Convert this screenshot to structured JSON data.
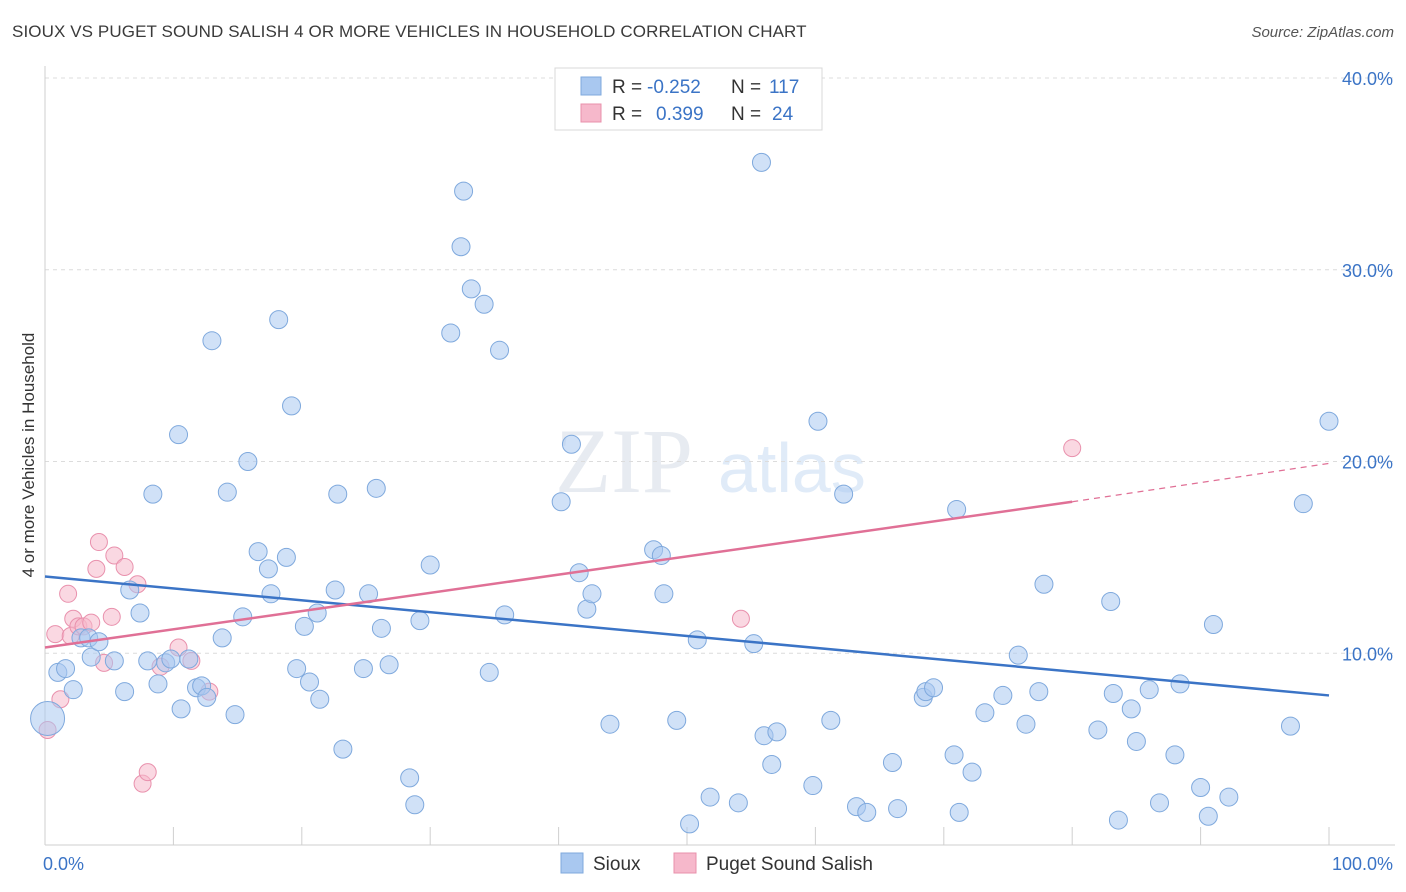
{
  "header": {
    "title": "SIOUX VS PUGET SOUND SALISH 4 OR MORE VEHICLES IN HOUSEHOLD CORRELATION CHART",
    "source": "Source: ZipAtlas.com"
  },
  "watermark": {
    "zip": "ZIP",
    "atlas": "atlas"
  },
  "legend_top": [
    {
      "r_label": "R =",
      "r_value": "-0.252",
      "n_label": "N =",
      "n_value": "117",
      "color": "#a9c8f0"
    },
    {
      "r_label": "R =",
      "r_value": "0.399",
      "n_label": "N =",
      "n_value": "24",
      "color": "#f6b8cb"
    }
  ],
  "legend_bottom": [
    {
      "label": "Sioux",
      "color": "#a9c8f0"
    },
    {
      "label": "Puget Sound Salish",
      "color": "#f6b8cb"
    }
  ],
  "chart_data": {
    "type": "scatter",
    "title": "SIOUX VS PUGET SOUND SALISH 4 OR MORE VEHICLES IN HOUSEHOLD CORRELATION CHART",
    "xlabel": "",
    "ylabel": "4 or more Vehicles in Household",
    "xlim": [
      0,
      100
    ],
    "ylim": [
      0,
      40
    ],
    "x_tick_labels": [
      "0.0%",
      "100.0%"
    ],
    "y_ticks": [
      10,
      20,
      30,
      40
    ],
    "y_tick_labels": [
      "10.0%",
      "20.0%",
      "30.0%",
      "40.0%"
    ],
    "grid": true,
    "legend_position": "top-center",
    "colors": {
      "sioux": "#a9c8f0",
      "sioux_line": "#3b74c6",
      "salish": "#f6b8cb",
      "salish_line": "#e07096"
    },
    "series": [
      {
        "name": "Sioux",
        "points": [
          [
            0.2,
            6.6
          ],
          [
            1.0,
            9.0
          ],
          [
            1.6,
            9.2
          ],
          [
            2.2,
            8.1
          ],
          [
            2.8,
            10.8
          ],
          [
            3.4,
            10.8
          ],
          [
            3.6,
            9.8
          ],
          [
            4.2,
            10.6
          ],
          [
            5.4,
            9.6
          ],
          [
            6.2,
            8.0
          ],
          [
            6.6,
            13.3
          ],
          [
            7.4,
            12.1
          ],
          [
            8.0,
            9.6
          ],
          [
            8.4,
            18.3
          ],
          [
            8.8,
            8.4
          ],
          [
            9.4,
            9.5
          ],
          [
            9.8,
            9.7
          ],
          [
            10.4,
            21.4
          ],
          [
            10.6,
            7.1
          ],
          [
            11.2,
            9.7
          ],
          [
            11.8,
            8.2
          ],
          [
            12.2,
            8.3
          ],
          [
            12.6,
            7.7
          ],
          [
            13.0,
            26.3
          ],
          [
            13.8,
            10.8
          ],
          [
            14.2,
            18.4
          ],
          [
            14.8,
            6.8
          ],
          [
            15.4,
            11.9
          ],
          [
            15.8,
            20.0
          ],
          [
            16.6,
            15.3
          ],
          [
            17.4,
            14.4
          ],
          [
            17.6,
            13.1
          ],
          [
            18.2,
            27.4
          ],
          [
            18.8,
            15.0
          ],
          [
            19.2,
            22.9
          ],
          [
            19.6,
            9.2
          ],
          [
            20.2,
            11.4
          ],
          [
            20.6,
            8.5
          ],
          [
            21.2,
            12.1
          ],
          [
            21.4,
            7.6
          ],
          [
            22.6,
            13.3
          ],
          [
            22.8,
            18.3
          ],
          [
            23.2,
            5.0
          ],
          [
            24.8,
            9.2
          ],
          [
            25.2,
            13.1
          ],
          [
            25.8,
            18.6
          ],
          [
            26.2,
            11.3
          ],
          [
            26.8,
            9.4
          ],
          [
            28.4,
            3.5
          ],
          [
            28.8,
            2.1
          ],
          [
            29.2,
            11.7
          ],
          [
            30.0,
            14.6
          ],
          [
            31.6,
            26.7
          ],
          [
            32.4,
            31.2
          ],
          [
            32.6,
            34.1
          ],
          [
            33.2,
            29.0
          ],
          [
            34.2,
            28.2
          ],
          [
            34.6,
            9.0
          ],
          [
            35.4,
            25.8
          ],
          [
            35.8,
            12.0
          ],
          [
            40.2,
            17.9
          ],
          [
            41.0,
            20.9
          ],
          [
            41.6,
            14.2
          ],
          [
            42.2,
            12.3
          ],
          [
            42.6,
            13.1
          ],
          [
            44.0,
            6.3
          ],
          [
            47.4,
            15.4
          ],
          [
            48.0,
            15.1
          ],
          [
            48.2,
            13.1
          ],
          [
            49.2,
            6.5
          ],
          [
            50.2,
            1.1
          ],
          [
            50.8,
            10.7
          ],
          [
            51.8,
            2.5
          ],
          [
            54.0,
            2.2
          ],
          [
            55.2,
            10.5
          ],
          [
            55.8,
            35.6
          ],
          [
            56.0,
            5.7
          ],
          [
            56.6,
            4.2
          ],
          [
            57.0,
            5.9
          ],
          [
            59.8,
            3.1
          ],
          [
            60.2,
            22.1
          ],
          [
            61.2,
            6.5
          ],
          [
            62.2,
            18.3
          ],
          [
            63.2,
            2.0
          ],
          [
            64.0,
            1.7
          ],
          [
            66.0,
            4.3
          ],
          [
            66.4,
            1.9
          ],
          [
            68.4,
            7.7
          ],
          [
            68.6,
            8.0
          ],
          [
            69.2,
            8.2
          ],
          [
            70.8,
            4.7
          ],
          [
            71.0,
            17.5
          ],
          [
            71.2,
            1.7
          ],
          [
            72.2,
            3.8
          ],
          [
            73.2,
            6.9
          ],
          [
            74.6,
            7.8
          ],
          [
            75.8,
            9.9
          ],
          [
            76.4,
            6.3
          ],
          [
            77.4,
            8.0
          ],
          [
            77.8,
            13.6
          ],
          [
            82.0,
            6.0
          ],
          [
            83.0,
            12.7
          ],
          [
            83.2,
            7.9
          ],
          [
            83.6,
            1.3
          ],
          [
            84.6,
            7.1
          ],
          [
            85.0,
            5.4
          ],
          [
            86.0,
            8.1
          ],
          [
            86.8,
            2.2
          ],
          [
            88.0,
            4.7
          ],
          [
            88.4,
            8.4
          ],
          [
            90.0,
            3.0
          ],
          [
            90.6,
            1.5
          ],
          [
            91.0,
            11.5
          ],
          [
            92.2,
            2.5
          ],
          [
            97.0,
            6.2
          ],
          [
            98.0,
            17.8
          ],
          [
            100.0,
            22.1
          ]
        ]
      },
      {
        "name": "Puget Sound Salish",
        "points": [
          [
            0.2,
            6.0
          ],
          [
            0.8,
            11.0
          ],
          [
            1.2,
            7.6
          ],
          [
            1.8,
            13.1
          ],
          [
            2.0,
            10.9
          ],
          [
            2.2,
            11.8
          ],
          [
            2.6,
            11.4
          ],
          [
            3.0,
            11.4
          ],
          [
            3.6,
            11.6
          ],
          [
            4.0,
            14.4
          ],
          [
            4.2,
            15.8
          ],
          [
            4.6,
            9.5
          ],
          [
            5.2,
            11.9
          ],
          [
            5.4,
            15.1
          ],
          [
            6.2,
            14.5
          ],
          [
            7.2,
            13.6
          ],
          [
            7.6,
            3.2
          ],
          [
            8.0,
            3.8
          ],
          [
            9.0,
            9.3
          ],
          [
            10.4,
            10.3
          ],
          [
            11.4,
            9.6
          ],
          [
            12.8,
            8.0
          ],
          [
            54.2,
            11.8
          ],
          [
            80.0,
            20.7
          ]
        ]
      }
    ],
    "trendlines": [
      {
        "series": "Sioux",
        "x": [
          0,
          100
        ],
        "y": [
          14.0,
          7.8
        ],
        "style": "solid"
      },
      {
        "series": "Puget Sound Salish",
        "x": [
          0,
          80,
          100
        ],
        "y": [
          10.3,
          17.9,
          19.9
        ],
        "style": "solid-then-dashed",
        "dash_from_x": 80
      }
    ]
  }
}
